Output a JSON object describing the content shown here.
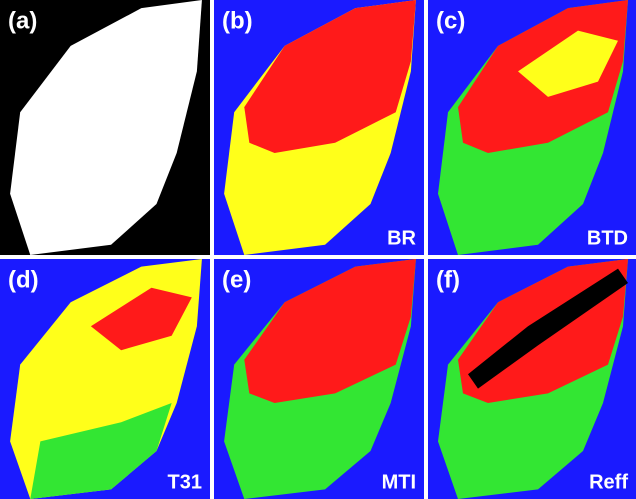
{
  "panels": [
    {
      "label": "(a)"
    },
    {
      "label": "(b)",
      "method": "BR"
    },
    {
      "label": "(c)",
      "method": "BTD"
    },
    {
      "label": "(d)",
      "method": "T31"
    },
    {
      "label": "(e)",
      "method": "MTI"
    },
    {
      "label": "(f)",
      "method": "Reff"
    }
  ]
}
